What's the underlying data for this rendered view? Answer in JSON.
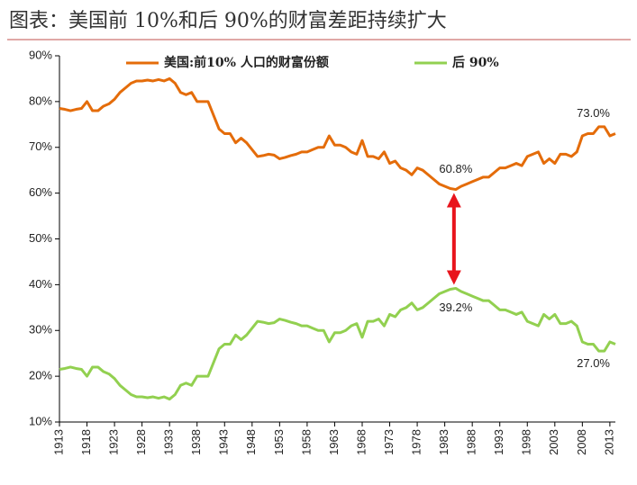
{
  "chart_data": {
    "type": "line",
    "title": "图表：美国前 10%和后 90%的财富差距持续扩大",
    "x": [
      1913,
      1914,
      1915,
      1916,
      1917,
      1918,
      1919,
      1920,
      1921,
      1922,
      1923,
      1924,
      1925,
      1926,
      1927,
      1928,
      1929,
      1930,
      1931,
      1932,
      1933,
      1934,
      1935,
      1936,
      1937,
      1938,
      1939,
      1940,
      1941,
      1942,
      1943,
      1944,
      1945,
      1946,
      1947,
      1948,
      1949,
      1950,
      1951,
      1952,
      1953,
      1954,
      1955,
      1956,
      1957,
      1958,
      1959,
      1960,
      1961,
      1962,
      1963,
      1964,
      1965,
      1966,
      1967,
      1968,
      1969,
      1970,
      1971,
      1972,
      1973,
      1974,
      1975,
      1976,
      1977,
      1978,
      1979,
      1980,
      1981,
      1982,
      1983,
      1984,
      1985,
      1986,
      1987,
      1988,
      1989,
      1990,
      1991,
      1992,
      1993,
      1994,
      1995,
      1996,
      1997,
      1998,
      1999,
      2000,
      2001,
      2002,
      2003,
      2004,
      2005,
      2006,
      2007,
      2008,
      2009,
      2010,
      2011,
      2012,
      2013,
      2014
    ],
    "series": [
      {
        "name": "美国:前10% 人口的财富份额",
        "color": "#e46c0a",
        "values": [
          78.5,
          78.3,
          78,
          78.3,
          78.5,
          80,
          78,
          78,
          79,
          79.5,
          80.5,
          82,
          83,
          84,
          84.5,
          84.5,
          84.7,
          84.5,
          84.8,
          84.5,
          85,
          84,
          82,
          81.5,
          82,
          80,
          80,
          80,
          77,
          74,
          73,
          73,
          71,
          72,
          71,
          69.5,
          68,
          68.2,
          68.5,
          68.3,
          67.5,
          67.8,
          68.2,
          68.5,
          69,
          69,
          69.5,
          70,
          70,
          72.5,
          70.5,
          70.5,
          70,
          69,
          68.5,
          71.5,
          68,
          68,
          67.5,
          69,
          66.5,
          67,
          65.5,
          65,
          64,
          65.5,
          65,
          64,
          63,
          62,
          61.5,
          61,
          60.8,
          61.5,
          62,
          62.5,
          63,
          63.5,
          63.5,
          64.5,
          65.5,
          65.5,
          66,
          66.5,
          66,
          68,
          68.5,
          69,
          66.5,
          67.5,
          66.5,
          68.5,
          68.5,
          68,
          69,
          72.5,
          73,
          73,
          74.5,
          74.5,
          72.5,
          73
        ]
      },
      {
        "name": "后 90%",
        "color": "#92d050",
        "values": [
          21.5,
          21.7,
          22,
          21.7,
          21.5,
          20,
          22,
          22,
          21,
          20.5,
          19.5,
          18,
          17,
          16,
          15.5,
          15.5,
          15.3,
          15.5,
          15.2,
          15.5,
          15,
          16,
          18,
          18.5,
          18,
          20,
          20,
          20,
          23,
          26,
          27,
          27,
          29,
          28,
          29,
          30.5,
          32,
          31.8,
          31.5,
          31.7,
          32.5,
          32.2,
          31.8,
          31.5,
          31,
          31,
          30.5,
          30,
          30,
          27.5,
          29.5,
          29.5,
          30,
          31,
          31.5,
          28.5,
          32,
          32,
          32.5,
          31,
          33.5,
          33,
          34.5,
          35,
          36,
          34.5,
          35,
          36,
          37,
          38,
          38.5,
          39,
          39.2,
          38.5,
          38,
          37.5,
          37,
          36.5,
          36.5,
          35.5,
          34.5,
          34.5,
          34,
          33.5,
          34,
          32,
          31.5,
          31,
          33.5,
          32.5,
          33.5,
          31.5,
          31.5,
          32,
          31,
          27.5,
          27,
          27,
          25.5,
          25.5,
          27.5,
          27
        ]
      }
    ],
    "annotations": [
      {
        "text": "73.0%",
        "x": 2010,
        "y": 73
      },
      {
        "text": "60.8%",
        "x": 1985,
        "y": 60.8
      },
      {
        "text": "39.2%",
        "x": 1985,
        "y": 39.2
      },
      {
        "text": "27.0%",
        "x": 2010,
        "y": 27
      }
    ],
    "xlim": [
      1913,
      2014
    ],
    "xticks": [
      1913,
      1918,
      1923,
      1928,
      1933,
      1938,
      1943,
      1948,
      1953,
      1958,
      1963,
      1968,
      1973,
      1978,
      1983,
      1988,
      1993,
      1998,
      2003,
      2008,
      2013
    ],
    "ylim": [
      10,
      90
    ],
    "yticks": [
      {
        "value": 10,
        "label": "10%"
      },
      {
        "value": 20,
        "label": "20%"
      },
      {
        "value": 30,
        "label": "30%"
      },
      {
        "value": 40,
        "label": "40%"
      },
      {
        "value": 50,
        "label": "50%"
      },
      {
        "value": 60,
        "label": "60%"
      },
      {
        "value": 70,
        "label": "70%"
      },
      {
        "value": 80,
        "label": "80%"
      },
      {
        "value": 90,
        "label": "90%"
      }
    ],
    "legend": "top"
  }
}
